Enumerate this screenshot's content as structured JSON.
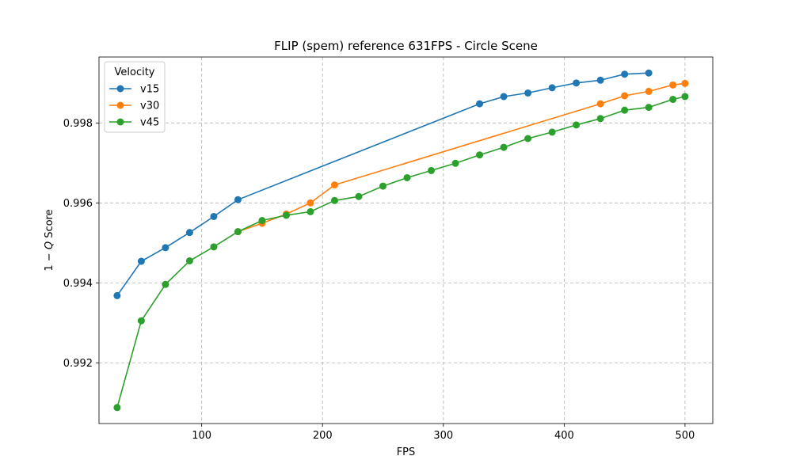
{
  "chart_data": {
    "type": "line",
    "title": "FLIP (spem) reference 631FPS - Circle Scene",
    "xlabel": "FPS",
    "ylabel_prefix": "1 − ",
    "ylabel_var": "Q",
    "ylabel_suffix": " Score",
    "xlim": [
      15,
      523
    ],
    "ylim": [
      0.99048,
      0.99965
    ],
    "xticks": [
      100,
      200,
      300,
      400,
      500
    ],
    "xtick_labels": [
      "100",
      "200",
      "300",
      "400",
      "500"
    ],
    "yticks": [
      0.992,
      0.994,
      0.996,
      0.998
    ],
    "ytick_labels": [
      "0.992",
      "0.994",
      "0.996",
      "0.998"
    ],
    "grid": true,
    "legend": {
      "title": "Velocity",
      "position": "top-left"
    },
    "series": [
      {
        "name": "v15",
        "color": "#1f77b4",
        "x": [
          30,
          50,
          70,
          90,
          110,
          130,
          330,
          350,
          370,
          390,
          410,
          430,
          450,
          470
        ],
        "y": [
          0.99368,
          0.99454,
          0.99488,
          0.99526,
          0.99566,
          0.99608,
          0.99848,
          0.99866,
          0.99875,
          0.99888,
          0.999,
          0.99907,
          0.99922,
          0.99925
        ]
      },
      {
        "name": "v30",
        "color": "#ff7f0e",
        "x": [
          130,
          150,
          170,
          190,
          210,
          430,
          450,
          470,
          490,
          500
        ],
        "y": [
          0.99528,
          0.99549,
          0.99572,
          0.996,
          0.99645,
          0.99848,
          0.99868,
          0.99879,
          0.99895,
          0.99899
        ]
      },
      {
        "name": "v45",
        "color": "#2ca02c",
        "x": [
          30,
          50,
          70,
          90,
          110,
          130,
          150,
          170,
          190,
          210,
          230,
          250,
          270,
          290,
          310,
          330,
          350,
          370,
          390,
          410,
          430,
          450,
          470,
          490,
          500
        ],
        "y": [
          0.99088,
          0.99305,
          0.99396,
          0.99455,
          0.9949,
          0.99528,
          0.99556,
          0.99569,
          0.99578,
          0.99606,
          0.99616,
          0.99642,
          0.99663,
          0.99681,
          0.99699,
          0.9972,
          0.99739,
          0.99761,
          0.99777,
          0.99795,
          0.99811,
          0.99832,
          0.99839,
          0.99859,
          0.99866
        ]
      }
    ]
  }
}
